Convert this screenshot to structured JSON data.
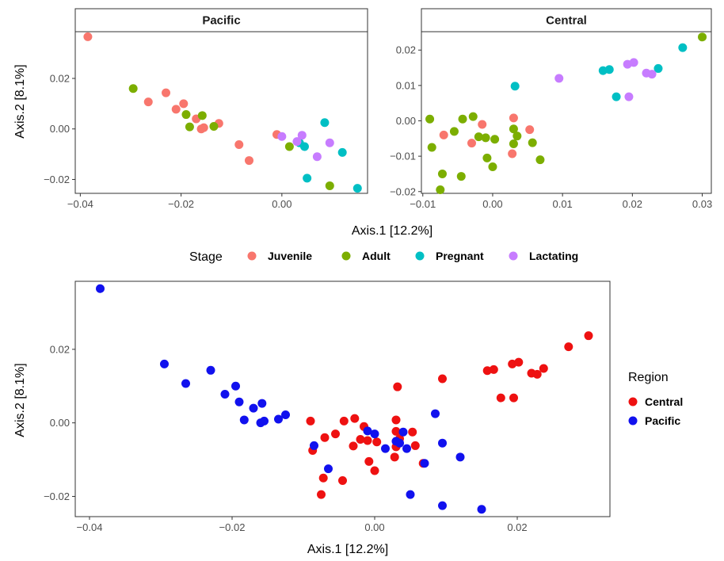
{
  "chart_data": [
    {
      "type": "scatter",
      "panel": "Pacific",
      "facet_of": "Stage",
      "xlim": [
        -0.041,
        0.017
      ],
      "ylim": [
        -0.0255,
        0.0385
      ],
      "xticks": [
        -0.04,
        -0.02,
        0.0
      ],
      "yticks": [
        -0.02,
        0.0,
        0.02
      ],
      "xtick_labels": [
        "−0.04",
        "−0.02",
        "0.00"
      ],
      "ytick_labels": [
        "−0.02",
        "0.00",
        "0.02"
      ],
      "grid": false,
      "series": [
        {
          "name": "Juvenile",
          "color": "#F8766D",
          "points": [
            [
              -0.0385,
              0.0365
            ],
            [
              -0.0265,
              0.0107
            ],
            [
              -0.023,
              0.0143
            ],
            [
              -0.021,
              0.0078
            ],
            [
              -0.0195,
              0.01
            ],
            [
              -0.017,
              0.004
            ],
            [
              -0.016,
              0.0
            ],
            [
              -0.0155,
              0.0005
            ],
            [
              -0.0125,
              0.0022
            ],
            [
              -0.0085,
              -0.0062
            ],
            [
              -0.0065,
              -0.0125
            ],
            [
              -0.001,
              -0.0022
            ]
          ]
        },
        {
          "name": "Adult",
          "color": "#7CAE00",
          "points": [
            [
              -0.0295,
              0.016
            ],
            [
              -0.019,
              0.0057
            ],
            [
              -0.0183,
              0.0008
            ],
            [
              -0.0158,
              0.0053
            ],
            [
              -0.0135,
              0.001
            ],
            [
              0.0015,
              -0.007
            ],
            [
              0.0095,
              -0.0225
            ]
          ]
        },
        {
          "name": "Pregnant",
          "color": "#00BFC4",
          "points": [
            [
              0.0035,
              -0.0055
            ],
            [
              0.0045,
              -0.007
            ],
            [
              0.005,
              -0.0195
            ],
            [
              0.0085,
              0.0025
            ],
            [
              0.012,
              -0.0093
            ],
            [
              0.015,
              -0.0235
            ]
          ]
        },
        {
          "name": "Lactating",
          "color": "#C77CFF",
          "points": [
            [
              0.0,
              -0.003
            ],
            [
              0.003,
              -0.005
            ],
            [
              0.004,
              -0.0025
            ],
            [
              0.007,
              -0.011
            ],
            [
              0.0095,
              -0.0055
            ]
          ]
        }
      ]
    },
    {
      "type": "scatter",
      "panel": "Central",
      "facet_of": "Stage",
      "xlim": [
        -0.0102,
        0.0313
      ],
      "ylim": [
        -0.0205,
        0.0252
      ],
      "xticks": [
        -0.01,
        0.0,
        0.01,
        0.02,
        0.03
      ],
      "yticks": [
        -0.02,
        -0.01,
        0.0,
        0.01,
        0.02
      ],
      "xtick_labels": [
        "−0.01",
        "0.00",
        "0.01",
        "0.02",
        "0.03"
      ],
      "ytick_labels": [
        "−0.02",
        "−0.01",
        "0.00",
        "0.01",
        "0.02"
      ],
      "grid": false,
      "series": [
        {
          "name": "Juvenile",
          "color": "#F8766D",
          "points": [
            [
              -0.007,
              -0.004
            ],
            [
              -0.003,
              -0.0063
            ],
            [
              -0.0015,
              -0.001
            ],
            [
              0.003,
              0.0008
            ],
            [
              0.0028,
              -0.0093
            ],
            [
              0.0053,
              -0.0025
            ]
          ]
        },
        {
          "name": "Adult",
          "color": "#7CAE00",
          "points": [
            [
              -0.009,
              0.0005
            ],
            [
              -0.0087,
              -0.0075
            ],
            [
              -0.0075,
              -0.0195
            ],
            [
              -0.0072,
              -0.015
            ],
            [
              -0.0055,
              -0.003
            ],
            [
              -0.0045,
              -0.0157
            ],
            [
              -0.0043,
              0.0005
            ],
            [
              -0.0028,
              0.0012
            ],
            [
              -0.002,
              -0.0045
            ],
            [
              -0.001,
              -0.0048
            ],
            [
              -0.0008,
              -0.0105
            ],
            [
              0.0003,
              -0.0052
            ],
            [
              0.0,
              -0.013
            ],
            [
              0.003,
              -0.0023
            ],
            [
              0.003,
              -0.0065
            ],
            [
              0.0035,
              -0.0043
            ],
            [
              0.0057,
              -0.0062
            ],
            [
              0.0068,
              -0.011
            ],
            [
              0.03,
              0.0237
            ]
          ]
        },
        {
          "name": "Pregnant",
          "color": "#00BFC4",
          "points": [
            [
              0.0032,
              0.0098
            ],
            [
              0.0158,
              0.0142
            ],
            [
              0.0167,
              0.0145
            ],
            [
              0.0177,
              0.0068
            ],
            [
              0.0237,
              0.0148
            ],
            [
              0.0272,
              0.0207
            ]
          ]
        },
        {
          "name": "Lactating",
          "color": "#C77CFF",
          "points": [
            [
              0.0095,
              0.012
            ],
            [
              0.0193,
              0.016
            ],
            [
              0.0195,
              0.0068
            ],
            [
              0.0202,
              0.0165
            ],
            [
              0.022,
              0.0135
            ],
            [
              0.0228,
              0.0132
            ]
          ]
        }
      ]
    },
    {
      "type": "scatter",
      "panel": "combined",
      "facet_of": "Region",
      "xlim": [
        -0.042,
        0.033
      ],
      "ylim": [
        -0.0255,
        0.0385
      ],
      "xticks": [
        -0.04,
        -0.02,
        0.0,
        0.02
      ],
      "yticks": [
        -0.02,
        0.0,
        0.02
      ],
      "xtick_labels": [
        "−0.04",
        "−0.02",
        "0.00",
        "0.02"
      ],
      "ytick_labels": [
        "−0.02",
        "0.00",
        "0.02"
      ],
      "grid": false,
      "series": [
        {
          "name": "Central",
          "color": "#EE1111",
          "points": [
            [
              -0.009,
              0.0005
            ],
            [
              -0.0087,
              -0.0075
            ],
            [
              -0.0075,
              -0.0195
            ],
            [
              -0.0072,
              -0.015
            ],
            [
              -0.007,
              -0.004
            ],
            [
              -0.0055,
              -0.003
            ],
            [
              -0.0045,
              -0.0157
            ],
            [
              -0.0043,
              0.0005
            ],
            [
              -0.003,
              -0.0063
            ],
            [
              -0.0028,
              0.0012
            ],
            [
              -0.002,
              -0.0045
            ],
            [
              -0.0015,
              -0.001
            ],
            [
              -0.001,
              -0.0048
            ],
            [
              -0.0008,
              -0.0105
            ],
            [
              0.0,
              -0.013
            ],
            [
              0.0003,
              -0.0052
            ],
            [
              0.0028,
              -0.0093
            ],
            [
              0.003,
              0.0008
            ],
            [
              0.003,
              -0.0023
            ],
            [
              0.003,
              -0.0065
            ],
            [
              0.0032,
              0.0098
            ],
            [
              0.0035,
              -0.0043
            ],
            [
              0.0053,
              -0.0025
            ],
            [
              0.0057,
              -0.0062
            ],
            [
              0.0068,
              -0.011
            ],
            [
              0.0095,
              0.012
            ],
            [
              0.0158,
              0.0142
            ],
            [
              0.0167,
              0.0145
            ],
            [
              0.0177,
              0.0068
            ],
            [
              0.0193,
              0.016
            ],
            [
              0.0195,
              0.0068
            ],
            [
              0.0202,
              0.0165
            ],
            [
              0.022,
              0.0135
            ],
            [
              0.0228,
              0.0132
            ],
            [
              0.0237,
              0.0148
            ],
            [
              0.0272,
              0.0207
            ],
            [
              0.03,
              0.0237
            ]
          ]
        },
        {
          "name": "Pacific",
          "color": "#1111EE",
          "points": [
            [
              -0.0385,
              0.0365
            ],
            [
              -0.0295,
              0.016
            ],
            [
              -0.0265,
              0.0107
            ],
            [
              -0.023,
              0.0143
            ],
            [
              -0.021,
              0.0078
            ],
            [
              -0.0195,
              0.01
            ],
            [
              -0.019,
              0.0057
            ],
            [
              -0.0183,
              0.0008
            ],
            [
              -0.017,
              0.004
            ],
            [
              -0.016,
              0.0
            ],
            [
              -0.0158,
              0.0053
            ],
            [
              -0.0155,
              0.0005
            ],
            [
              -0.0135,
              0.001
            ],
            [
              -0.0125,
              0.0022
            ],
            [
              -0.0085,
              -0.0062
            ],
            [
              -0.0065,
              -0.0125
            ],
            [
              -0.001,
              -0.0022
            ],
            [
              0.0,
              -0.003
            ],
            [
              0.0015,
              -0.007
            ],
            [
              0.003,
              -0.005
            ],
            [
              0.0035,
              -0.0055
            ],
            [
              0.004,
              -0.0025
            ],
            [
              0.0045,
              -0.007
            ],
            [
              0.005,
              -0.0195
            ],
            [
              0.007,
              -0.011
            ],
            [
              0.0085,
              0.0025
            ],
            [
              0.0095,
              -0.0055
            ],
            [
              0.0095,
              -0.0225
            ],
            [
              0.012,
              -0.0093
            ],
            [
              0.015,
              -0.0235
            ]
          ]
        }
      ]
    }
  ],
  "top": {
    "xlabel": "Axis.1   [12.2%]",
    "ylabel": "Axis.2   [8.1%]",
    "legend": {
      "title": "Stage",
      "items": [
        {
          "label": "Juvenile",
          "color": "#F8766D"
        },
        {
          "label": "Adult",
          "color": "#7CAE00"
        },
        {
          "label": "Pregnant",
          "color": "#00BFC4"
        },
        {
          "label": "Lactating",
          "color": "#C77CFF"
        }
      ]
    }
  },
  "bottom": {
    "xlabel": "Axis.1   [12.2%]",
    "ylabel": "Axis.2   [8.1%]",
    "legend": {
      "title": "Region",
      "items": [
        {
          "label": "Central",
          "color": "#EE1111"
        },
        {
          "label": "Pacific",
          "color": "#1111EE"
        }
      ]
    }
  }
}
